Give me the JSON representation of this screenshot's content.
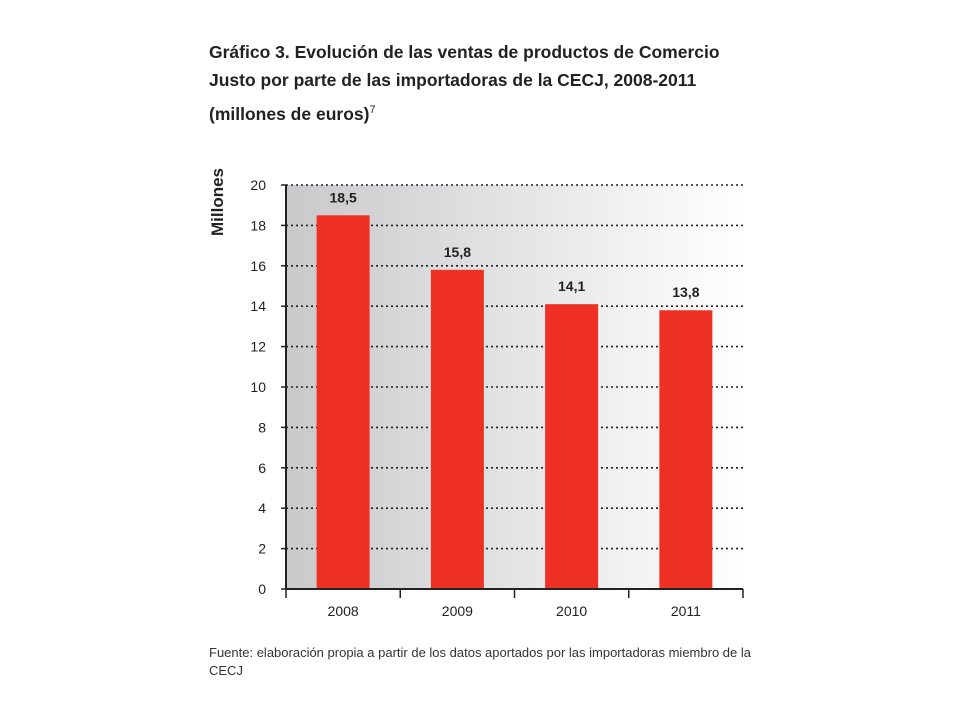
{
  "header": {
    "title": "Gráfico 3. Evolución de las ventas de productos de Comercio Justo por parte de las importadoras de la CECJ, 2008-2011",
    "subtitle": "(millones de euros)",
    "footnote_mark": "7"
  },
  "chart_data": {
    "type": "bar",
    "categories": [
      "2008",
      "2009",
      "2010",
      "2011"
    ],
    "values": [
      18.5,
      15.8,
      14.1,
      13.8
    ],
    "data_labels": [
      "18,5",
      "15,8",
      "14,1",
      "13,8"
    ],
    "xlabel": "",
    "ylabel": "Millones",
    "ylim": [
      0,
      20
    ],
    "yticks": [
      0,
      2,
      4,
      6,
      8,
      10,
      12,
      14,
      16,
      18,
      20
    ],
    "grid": true,
    "bar_color": "#ee3124",
    "background_gradient": [
      "#c9c9cc",
      "#ffffff"
    ]
  },
  "footer": {
    "source": "Fuente: elaboración propia a partir de los datos aportados por las importadoras miembro de la CECJ"
  }
}
